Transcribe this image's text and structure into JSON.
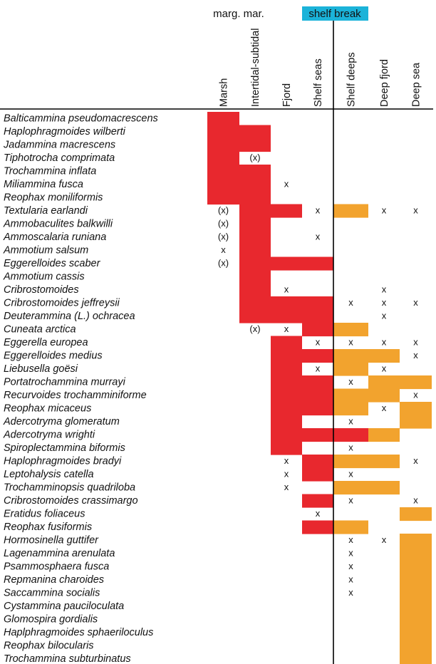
{
  "chart_data": {
    "type": "table",
    "title": "",
    "group_labels": {
      "marginal_marine": "marg. mar.",
      "shelf_break": "shelf break"
    },
    "colors": {
      "red": "#e8282e",
      "orange": "#f2a32e",
      "shelf_break_bg": "#1bb3d9"
    },
    "legend_codes": {
      "R": "red fill",
      "O": "orange fill",
      "x": "x",
      "(x)": "(x)",
      "": "empty"
    },
    "columns": [
      "Marsh",
      "Intertidal-subtidal",
      "Fjord",
      "Shelf seas",
      "Shelf deeps",
      "Deep fjord",
      "Deep sea"
    ],
    "rows": [
      {
        "species": "Balticammina pseudomacrescens",
        "cells": [
          "R",
          "",
          "",
          "",
          "",
          "",
          ""
        ]
      },
      {
        "species": "Haplophragmoides wilberti",
        "cells": [
          "R",
          "R",
          "",
          "",
          "",
          "",
          ""
        ]
      },
      {
        "species": "Jadammina macrescens",
        "cells": [
          "R",
          "R",
          "",
          "",
          "",
          "",
          ""
        ]
      },
      {
        "species": "Tiphotrocha comprimata",
        "cells": [
          "R",
          "(x)",
          "",
          "",
          "",
          "",
          ""
        ]
      },
      {
        "species": "Trochammina inflata",
        "cells": [
          "R",
          "R",
          "",
          "",
          "",
          "",
          ""
        ]
      },
      {
        "species": "Miliammina fusca",
        "cells": [
          "R",
          "R",
          "x",
          "",
          "",
          "",
          ""
        ]
      },
      {
        "species": "Reophax moniliformis",
        "cells": [
          "R",
          "R",
          "",
          "",
          "",
          "",
          ""
        ]
      },
      {
        "species": "Textularia earlandi",
        "cells": [
          "(x)",
          "R",
          "R",
          "x",
          "O",
          "x",
          "x"
        ]
      },
      {
        "species": "Ammobaculites balkwilli",
        "cells": [
          "(x)",
          "R",
          "",
          "",
          "",
          "",
          ""
        ]
      },
      {
        "species": "Ammoscalaria runiana",
        "cells": [
          "(x)",
          "R",
          "",
          "x",
          "",
          "",
          ""
        ]
      },
      {
        "species": "Ammotium salsum",
        "cells": [
          "x",
          "R",
          "",
          "",
          "",
          "",
          ""
        ]
      },
      {
        "species": "Eggerelloides scaber",
        "cells": [
          "(x)",
          "R",
          "R",
          "R",
          "",
          "",
          ""
        ]
      },
      {
        "species": "Ammotium cassis",
        "cells": [
          "",
          "R",
          "",
          "",
          "",
          "",
          ""
        ]
      },
      {
        "species": "Cribrostomoides",
        "cells": [
          "",
          "R",
          "x",
          "",
          "",
          "x",
          ""
        ]
      },
      {
        "species": "Cribrostomoides jeffreysii",
        "cells": [
          "",
          "R",
          "R",
          "R",
          "x",
          "x",
          "x"
        ]
      },
      {
        "species": "Deuterammina (L.) ochracea",
        "cells": [
          "",
          "R",
          "R",
          "R",
          "",
          "x",
          ""
        ]
      },
      {
        "species": "Cuneata arctica",
        "cells": [
          "",
          "(x)",
          "x",
          "R",
          "O",
          "",
          ""
        ]
      },
      {
        "species": "Eggerella europea",
        "cells": [
          "",
          "",
          "R",
          "x",
          "x",
          "x",
          "x"
        ]
      },
      {
        "species": "Eggerelloides medius",
        "cells": [
          "",
          "",
          "R",
          "R",
          "O",
          "O",
          "x"
        ]
      },
      {
        "species": "Liebusella goësi",
        "cells": [
          "",
          "",
          "R",
          "x",
          "O",
          "x",
          ""
        ]
      },
      {
        "species": "Portatrochammina murrayi",
        "cells": [
          "",
          "",
          "R",
          "R",
          "x",
          "O",
          "O"
        ]
      },
      {
        "species": "Recurvoides trochamminiforme",
        "cells": [
          "",
          "",
          "R",
          "R",
          "O",
          "O",
          "x"
        ]
      },
      {
        "species": "Reophax micaceus",
        "cells": [
          "",
          "",
          "R",
          "R",
          "O",
          "x",
          "O"
        ]
      },
      {
        "species": "Adercotryma glomeratum",
        "cells": [
          "",
          "",
          "R",
          "",
          "x",
          "",
          "O"
        ]
      },
      {
        "species": "Adercotryma wrighti",
        "cells": [
          "",
          "",
          "R",
          "R",
          "R",
          "O",
          ""
        ]
      },
      {
        "species": "Spiroplectammina biformis",
        "cells": [
          "",
          "",
          "R",
          "",
          "x",
          "",
          ""
        ]
      },
      {
        "species": "Haplophragmoides bradyi",
        "cells": [
          "",
          "",
          "x",
          "R",
          "O",
          "O",
          "x"
        ]
      },
      {
        "species": "Leptohalysis catella",
        "cells": [
          "",
          "",
          "x",
          "R",
          "x",
          "",
          ""
        ]
      },
      {
        "species": "Trochamminopsis quadriloba",
        "cells": [
          "",
          "",
          "x",
          "",
          "O",
          "O",
          ""
        ]
      },
      {
        "species": "Cribrostomoides crassimargo",
        "cells": [
          "",
          "",
          "",
          "R",
          "x",
          "",
          "x"
        ]
      },
      {
        "species": "Eratidus foliaceus",
        "cells": [
          "",
          "",
          "",
          "x",
          "",
          "",
          "O"
        ]
      },
      {
        "species": "Reophax fusiformis",
        "cells": [
          "",
          "",
          "",
          "R",
          "O",
          "",
          ""
        ]
      },
      {
        "species": "Hormosinella guttifer",
        "cells": [
          "",
          "",
          "",
          "",
          "x",
          "x",
          "O"
        ]
      },
      {
        "species": "Lagenammina arenulata",
        "cells": [
          "",
          "",
          "",
          "",
          "x",
          "",
          "O"
        ]
      },
      {
        "species": "Psammosphaera fusca",
        "cells": [
          "",
          "",
          "",
          "",
          "x",
          "",
          "O"
        ]
      },
      {
        "species": "Repmanina charoides",
        "cells": [
          "",
          "",
          "",
          "",
          "x",
          "",
          "O"
        ]
      },
      {
        "species": "Saccammina socialis",
        "cells": [
          "",
          "",
          "",
          "",
          "x",
          "",
          "O"
        ]
      },
      {
        "species": "Cystammina pauciloculata",
        "cells": [
          "",
          "",
          "",
          "",
          "",
          "",
          "O"
        ]
      },
      {
        "species": "Glomospira gordialis",
        "cells": [
          "",
          "",
          "",
          "",
          "",
          "",
          "O"
        ]
      },
      {
        "species": "Haplphragmoides sphaeriloculus",
        "cells": [
          "",
          "",
          "",
          "",
          "",
          "",
          "O"
        ]
      },
      {
        "species": "Reophax bilocularis",
        "cells": [
          "",
          "",
          "",
          "",
          "",
          "",
          "O"
        ]
      },
      {
        "species": "Trochammina subturbinatus",
        "cells": [
          "",
          "",
          "",
          "",
          "",
          "",
          "O"
        ]
      }
    ]
  }
}
